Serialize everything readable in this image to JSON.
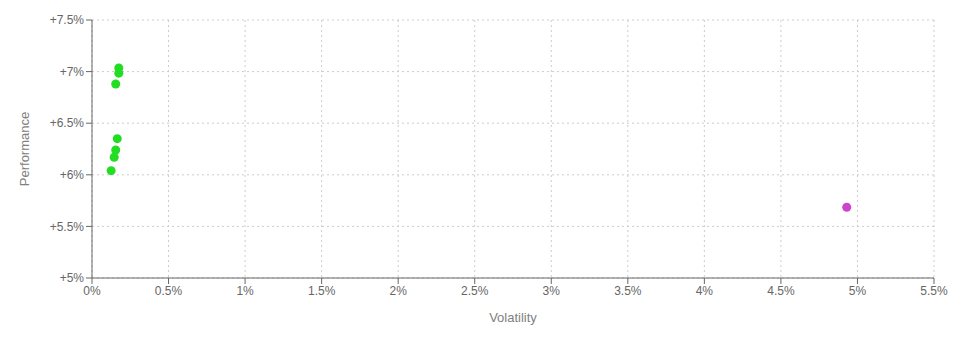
{
  "chart_data": {
    "type": "scatter",
    "xlabel": "Volatility",
    "ylabel": "Performance",
    "xlim": [
      0,
      0.055
    ],
    "ylim": [
      0.05,
      0.075
    ],
    "xticks": [
      {
        "value": 0.0,
        "label": "0%"
      },
      {
        "value": 0.005,
        "label": "0.5%"
      },
      {
        "value": 0.01,
        "label": "1%"
      },
      {
        "value": 0.015,
        "label": "1.5%"
      },
      {
        "value": 0.02,
        "label": "2%"
      },
      {
        "value": 0.025,
        "label": "2.5%"
      },
      {
        "value": 0.03,
        "label": "3%"
      },
      {
        "value": 0.035,
        "label": "3.5%"
      },
      {
        "value": 0.04,
        "label": "4%"
      },
      {
        "value": 0.045,
        "label": "4.5%"
      },
      {
        "value": 0.05,
        "label": "5%"
      },
      {
        "value": 0.055,
        "label": "5.5%"
      }
    ],
    "yticks": [
      {
        "value": 0.05,
        "label": "+5%"
      },
      {
        "value": 0.055,
        "label": "+5.5%"
      },
      {
        "value": 0.06,
        "label": "+6%"
      },
      {
        "value": 0.065,
        "label": "+6.5%"
      },
      {
        "value": 0.07,
        "label": "+7%"
      },
      {
        "value": 0.075,
        "label": "+7.5%"
      }
    ],
    "grid": true,
    "series": [
      {
        "color": "#22dd22",
        "x": [
          0.00175,
          0.00175,
          0.00155,
          0.00165,
          0.00155,
          0.00145,
          0.00125
        ],
        "values": [
          0.07035,
          0.06985,
          0.0688,
          0.0635,
          0.0624,
          0.0617,
          0.0604
        ]
      },
      {
        "color": "#cc44cc",
        "x": [
          0.0493
        ],
        "values": [
          0.05685
        ]
      }
    ]
  }
}
